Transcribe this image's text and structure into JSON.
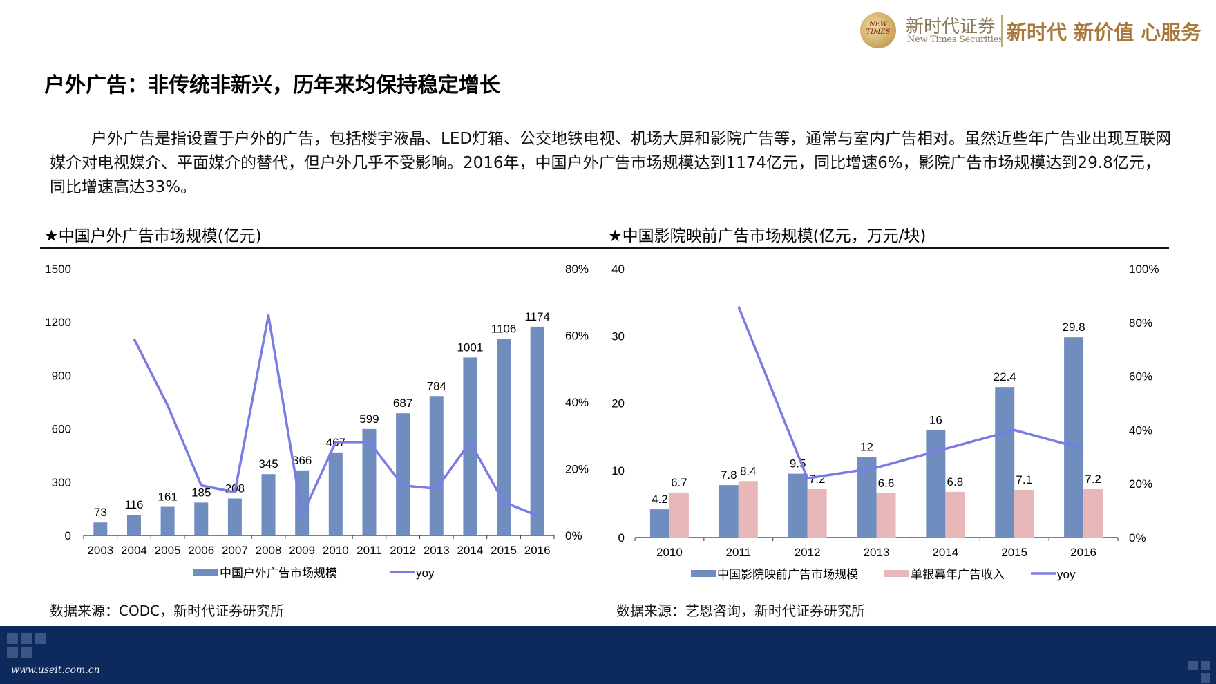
{
  "header": {
    "seal_text": "NEW TIMES",
    "brand_cn": "新时代证券",
    "brand_en": "New Times Securities",
    "slogan": "新时代 新价值 心服务"
  },
  "page_title": "户外广告：非传统非新兴，历年来均保持稳定增长",
  "paragraph": "户外广告是指设置于户外的广告，包括楼宇液晶、LED灯箱、公交地铁电视、机场大屏和影院广告等，通常与室内广告相对。虽然近些年广告业出现互联网媒介对电视媒介、平面媒介的替代，但户外几乎不受影响。2016年，中国户外广告市场规模达到1174亿元，同比增速6%，影院广告市场规模达到29.8亿元，同比增速高达33%。",
  "left_section": {
    "title": "★中国户外广告市场规模(亿元)",
    "source": "数据来源：CODC，新时代证券研究所"
  },
  "right_section": {
    "title": "★中国影院映前广告市场规模(亿元，万元/块)",
    "source": "数据来源：艺恩咨询，新时代证券研究所"
  },
  "footer": {
    "url": "www.useit.com.cn"
  },
  "colors": {
    "bar_blue": "#6f8dbf",
    "bar_pink": "#e8b7b7",
    "line_purple": "#7b7be6",
    "footer_navy": "#0e2a5c",
    "brand_gold": "#a8783c"
  },
  "chart_data": [
    {
      "type": "bar",
      "categories": [
        "2003",
        "2004",
        "2005",
        "2006",
        "2007",
        "2008",
        "2009",
        "2010",
        "2011",
        "2012",
        "2013",
        "2014",
        "2015",
        "2016"
      ],
      "series": [
        {
          "name": "中国户外广告市场规模",
          "type": "bar",
          "axis": "left",
          "values": [
            73,
            116,
            161,
            185,
            208,
            345,
            366,
            467,
            599,
            687,
            784,
            1001,
            1106,
            1174
          ],
          "labels": [
            "73",
            "116",
            "161",
            "185",
            "208",
            "345",
            "366",
            "467",
            "599",
            "687",
            "784",
            "1001",
            "1106",
            "1174"
          ]
        },
        {
          "name": "yoy",
          "type": "line",
          "axis": "right",
          "values": [
            null,
            0.59,
            0.39,
            0.15,
            0.13,
            0.66,
            0.06,
            0.28,
            0.28,
            0.15,
            0.14,
            0.28,
            0.1,
            0.06
          ]
        }
      ],
      "left_axis": {
        "min": 0,
        "max": 1500,
        "ticks": [
          "0",
          "300",
          "600",
          "900",
          "1200",
          "1500"
        ]
      },
      "right_axis": {
        "min": 0,
        "max": 0.8,
        "ticks": [
          "0%",
          "20%",
          "40%",
          "60%",
          "80%"
        ]
      },
      "grid": false,
      "legend_position": "bottom"
    },
    {
      "type": "bar",
      "categories": [
        "2010",
        "2011",
        "2012",
        "2013",
        "2014",
        "2015",
        "2016"
      ],
      "series": [
        {
          "name": "中国影院映前广告市场规模",
          "type": "bar",
          "axis": "left",
          "values": [
            4.2,
            7.8,
            9.5,
            12,
            16,
            22.4,
            29.8
          ],
          "labels": [
            "4.2",
            "7.8",
            "9.5",
            "12",
            "16",
            "22.4",
            "29.8"
          ]
        },
        {
          "name": "单银幕年广告收入",
          "type": "bar",
          "axis": "left",
          "values": [
            6.7,
            8.4,
            7.2,
            6.6,
            6.8,
            7.1,
            7.2
          ],
          "labels": [
            "6.7",
            "8.4",
            "7.2",
            "6.6",
            "6.8",
            "7.1",
            "7.2"
          ]
        },
        {
          "name": "yoy",
          "type": "line",
          "axis": "right",
          "values": [
            null,
            0.86,
            0.22,
            0.26,
            0.33,
            0.4,
            0.33
          ]
        }
      ],
      "left_axis": {
        "min": 0,
        "max": 40,
        "ticks": [
          "0",
          "10",
          "20",
          "30",
          "40"
        ]
      },
      "right_axis": {
        "min": 0,
        "max": 1.0,
        "ticks": [
          "0%",
          "20%",
          "40%",
          "60%",
          "80%",
          "100%"
        ]
      },
      "grid": false,
      "legend_position": "bottom"
    }
  ]
}
